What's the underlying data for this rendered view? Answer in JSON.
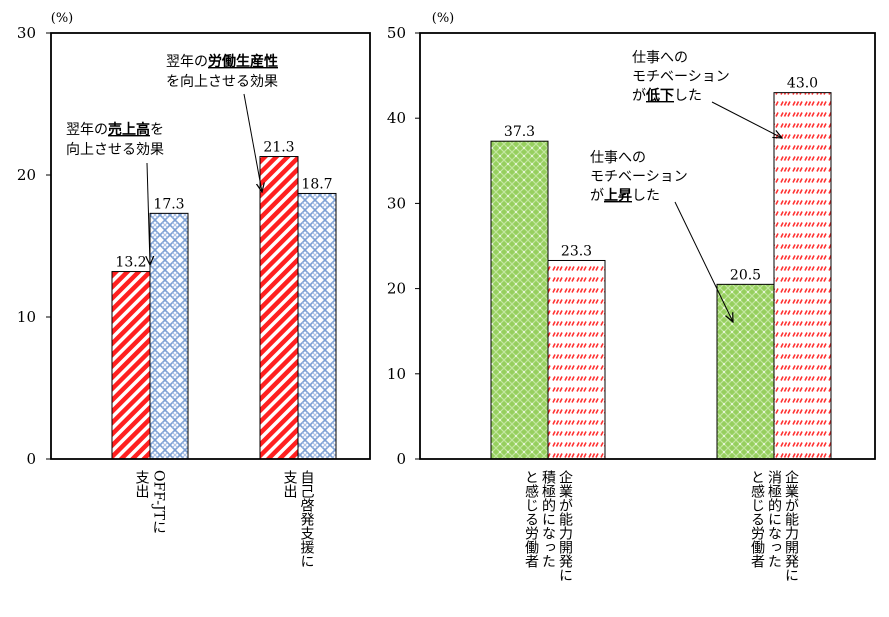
{
  "chart_data": [
    {
      "type": "bar",
      "ylabel": "(%)",
      "ylim": [
        0,
        30
      ],
      "yticks": [
        0,
        10,
        20,
        30
      ],
      "categories": [
        "OFF-JTに支出",
        "自己啓発支援に支出"
      ],
      "category_lines": [
        [
          "OFF-JTに",
          "支出"
        ],
        [
          "自己啓発支援に",
          "支出"
        ]
      ],
      "series": [
        {
          "values": [
            13.2,
            21.3
          ],
          "value_labels": [
            "13.2",
            "21.3"
          ],
          "color": "#ff2020",
          "pattern": "diagonal-stripes"
        },
        {
          "values": [
            17.3,
            18.7
          ],
          "value_labels": [
            "17.3",
            "18.7"
          ],
          "color": "#8aa8d8",
          "pattern": "weave"
        }
      ],
      "annotations": [
        {
          "target": "series2-cat1",
          "parts": [
            [
              "翌年の",
              false
            ],
            [
              "売上高",
              true
            ],
            [
              "を",
              false
            ],
            [
              "向上させる効果",
              false
            ]
          ],
          "lines": [
            [
              [
                "翌年の",
                false
              ],
              [
                "売上高",
                true
              ],
              [
                "を",
                false
              ]
            ],
            [
              [
                "向上させる効果",
                false
              ]
            ]
          ]
        },
        {
          "target": "series1-cat2",
          "lines": [
            [
              [
                "翌年の",
                false
              ],
              [
                "労働生産性",
                true
              ]
            ],
            [
              [
                "を向上させる効果",
                false
              ]
            ]
          ]
        }
      ]
    },
    {
      "type": "bar",
      "ylabel": "(%)",
      "ylim": [
        0,
        50
      ],
      "yticks": [
        0,
        10,
        20,
        30,
        40,
        50
      ],
      "categories": [
        "企業が能力開発に積極的になったと感じる労働者",
        "企業が能力開発に消極的になったと感じる労働者"
      ],
      "category_lines": [
        [
          "企業が能力開発に",
          "積極的になった",
          "と感じる労働者"
        ],
        [
          "企業が能力開発に",
          "消極的になった",
          "と感じる労働者"
        ]
      ],
      "series": [
        {
          "values": [
            37.3,
            20.5
          ],
          "value_labels": [
            "37.3",
            "20.5"
          ],
          "color": "#9ed36a",
          "pattern": "dotted-grid"
        },
        {
          "values": [
            23.3,
            43.0
          ],
          "value_labels": [
            "23.3",
            "43.0"
          ],
          "color": "#ff4040",
          "pattern": "dashes"
        }
      ],
      "annotations": [
        {
          "target": "series1-cat2",
          "lines": [
            [
              [
                "仕事への",
                false
              ]
            ],
            [
              [
                "モチベーション",
                false
              ]
            ],
            [
              [
                "が",
                false
              ],
              [
                "上昇",
                true
              ],
              [
                "した",
                false
              ]
            ]
          ]
        },
        {
          "target": "series2-cat2",
          "lines": [
            [
              [
                "仕事への",
                false
              ]
            ],
            [
              [
                "モチベーション",
                false
              ]
            ],
            [
              [
                "が",
                false
              ],
              [
                "低下",
                true
              ],
              [
                "した",
                false
              ]
            ]
          ]
        }
      ]
    }
  ]
}
